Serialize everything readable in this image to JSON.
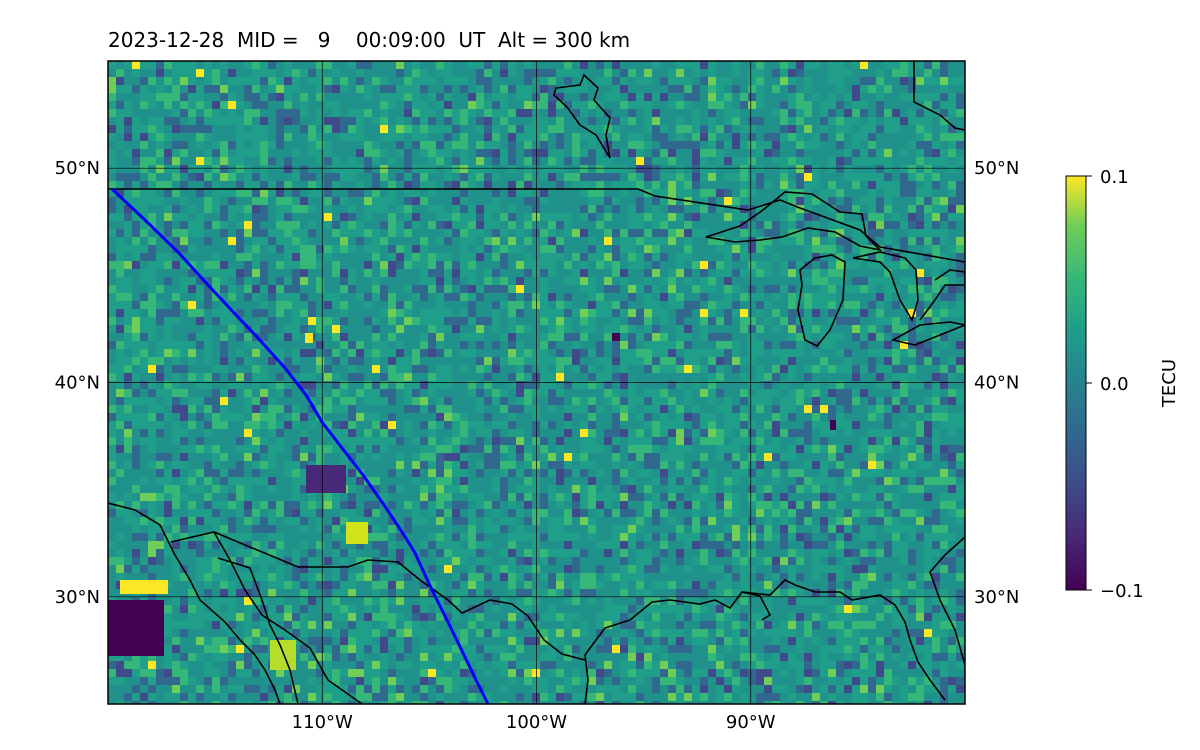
{
  "title": "2023-12-28  MID =   9    00:09:00  UT  Alt = 300 km",
  "map": {
    "lon_range": [
      -120,
      -80
    ],
    "lat_range": [
      25,
      55
    ],
    "lat_labels": [
      "50°N",
      "40°N",
      "30°N"
    ],
    "lat_values": [
      50,
      40,
      30
    ],
    "lon_labels": [
      "110°W",
      "100°W",
      "90°W"
    ],
    "lon_values": [
      -110,
      -100,
      -90
    ],
    "gridlines": true,
    "background": "#21918c",
    "track_color": "#0000ff",
    "coast_color": "#000000"
  },
  "colorbar": {
    "label": "TECU",
    "ticks": [
      "0.1",
      "0.0",
      "−0.1"
    ],
    "vmin": -0.1,
    "vmax": 0.1,
    "colormap": "viridis"
  }
}
